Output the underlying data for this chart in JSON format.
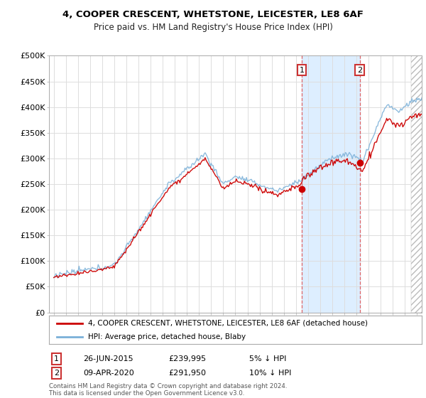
{
  "title": "4, COOPER CRESCENT, WHETSTONE, LEICESTER, LE8 6AF",
  "subtitle": "Price paid vs. HM Land Registry's House Price Index (HPI)",
  "ylabel_ticks": [
    "£0",
    "£50K",
    "£100K",
    "£150K",
    "£200K",
    "£250K",
    "£300K",
    "£350K",
    "£400K",
    "£450K",
    "£500K"
  ],
  "ytick_values": [
    0,
    50000,
    100000,
    150000,
    200000,
    250000,
    300000,
    350000,
    400000,
    450000,
    500000
  ],
  "ylim": [
    0,
    500000
  ],
  "xlim_start": 1994.6,
  "xlim_end": 2025.4,
  "plot_bg_color": "#ffffff",
  "grid_color": "#dddddd",
  "fig_bg_color": "#ffffff",
  "sale1_x": 2015.48,
  "sale1_y": 239995,
  "sale2_x": 2020.27,
  "sale2_y": 291950,
  "sale1_date": "26-JUN-2015",
  "sale1_price": "£239,995",
  "sale1_note": "5% ↓ HPI",
  "sale2_date": "09-APR-2020",
  "sale2_price": "£291,950",
  "sale2_note": "10% ↓ HPI",
  "legend_line1": "4, COOPER CRESCENT, WHETSTONE, LEICESTER, LE8 6AF (detached house)",
  "legend_line2": "HPI: Average price, detached house, Blaby",
  "footer": "Contains HM Land Registry data © Crown copyright and database right 2024.\nThis data is licensed under the Open Government Licence v3.0.",
  "hpi_color": "#7ab0d8",
  "price_color": "#cc0000",
  "dashed_color": "#dd4444",
  "shade_between_color": "#ddeeff",
  "hatch_color": "#cccccc",
  "future_start": 2024.5
}
